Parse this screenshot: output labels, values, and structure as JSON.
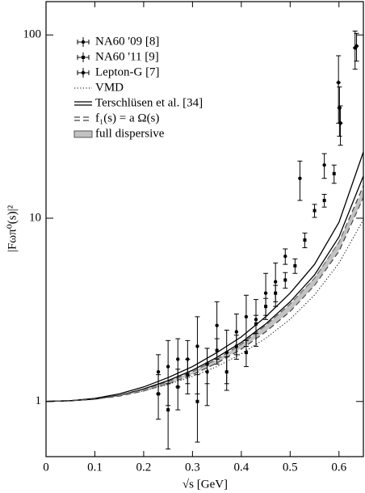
{
  "chart_data": {
    "type": "scatter",
    "xlabel": "√s [GeV]",
    "ylabel": "|Fωπ⁰(s)|²",
    "xlim": [
      0,
      0.65
    ],
    "xticks": [
      0,
      0.1,
      0.2,
      0.3,
      0.4,
      0.5,
      0.6
    ],
    "ylim": [
      0.5,
      152
    ],
    "yticks": [
      1,
      10,
      100
    ],
    "log_y": true,
    "legend": "upper left",
    "curve_x": [
      0,
      0.05,
      0.1,
      0.15,
      0.2,
      0.25,
      0.3,
      0.35,
      0.4,
      0.45,
      0.5,
      0.55,
      0.6,
      0.65
    ],
    "series": [
      {
        "name": "NA60 '09 [8]",
        "style": "errorbar-circle",
        "color": "#000000",
        "x": [
          0.23,
          0.25,
          0.27,
          0.29,
          0.31,
          0.33,
          0.35,
          0.37,
          0.39,
          0.41,
          0.43,
          0.45,
          0.47,
          0.49,
          0.52,
          0.57
        ],
        "values": [
          1.45,
          1.55,
          1.7,
          1.7,
          2.0,
          1.45,
          2.6,
          1.85,
          2.4,
          2.9,
          2.8,
          3.9,
          4.5,
          6.2,
          16.5,
          19.5
        ],
        "errors": [
          0.35,
          0.6,
          0.5,
          0.45,
          0.9,
          0.5,
          0.9,
          0.6,
          0.6,
          0.9,
          0.8,
          1.1,
          1.2,
          0.6,
          4,
          3
        ]
      },
      {
        "name": "NA60 '11 [9]",
        "style": "errorbar-square",
        "color": "#000000",
        "x": [
          0.23,
          0.25,
          0.27,
          0.29,
          0.31,
          0.33,
          0.35,
          0.37,
          0.39,
          0.41,
          0.43,
          0.45,
          0.47,
          0.49,
          0.51,
          0.53,
          0.55,
          0.57,
          0.59
        ],
        "values": [
          1.1,
          0.9,
          1.2,
          1.4,
          1.0,
          1.6,
          1.9,
          1.45,
          2.0,
          1.85,
          2.65,
          3.3,
          3.9,
          4.6,
          5.5,
          7.6,
          11,
          12.5,
          17.5
        ],
        "errors": [
          0.3,
          0.35,
          0.3,
          0.3,
          0.4,
          0.35,
          0.3,
          0.3,
          0.3,
          0.3,
          0.3,
          0.35,
          0.4,
          0.45,
          0.5,
          0.7,
          0.9,
          1.0,
          2.0
        ]
      },
      {
        "name": "Lepton-G [7]",
        "style": "errorbar-diamond",
        "color": "#000000",
        "x": [
          0.599,
          0.601,
          0.603,
          0.633,
          0.636
        ],
        "values": [
          55,
          40,
          33,
          85,
          87
        ],
        "errors": [
          22,
          12,
          8,
          20,
          15
        ]
      },
      {
        "name": "VMD",
        "style": "dotted",
        "color": "#000000",
        "lines": [
          [
            1,
            1.01,
            1.03,
            1.08,
            1.14,
            1.24,
            1.37,
            1.55,
            1.82,
            2.21,
            2.81,
            3.81,
            5.69,
            9.83
          ]
        ]
      },
      {
        "name": "Terschlüsen et al. [34]",
        "style": "solid",
        "color": "#000000",
        "lines": [
          [
            1,
            1.01,
            1.04,
            1.1,
            1.2,
            1.35,
            1.55,
            1.85,
            2.25,
            2.9,
            3.9,
            5.6,
            9.5,
            23
          ],
          [
            1,
            1.01,
            1.03,
            1.08,
            1.17,
            1.3,
            1.48,
            1.74,
            2.1,
            2.65,
            3.5,
            4.9,
            7.9,
            17
          ]
        ]
      },
      {
        "name": "f₁(s) = a Ω(s)",
        "style": "dashed",
        "color": "#444444",
        "lines": [
          [
            1,
            1.01,
            1.03,
            1.08,
            1.16,
            1.28,
            1.45,
            1.7,
            2.05,
            2.6,
            3.4,
            4.7,
            7.4,
            15
          ],
          [
            1,
            1.01,
            1.03,
            1.07,
            1.14,
            1.25,
            1.4,
            1.62,
            1.93,
            2.4,
            3.1,
            4.3,
            6.6,
            13
          ]
        ]
      },
      {
        "name": "full dispersive",
        "style": "band",
        "color": "#999999",
        "lines": [
          [
            1,
            1.01,
            1.03,
            1.08,
            1.16,
            1.28,
            1.45,
            1.7,
            2.05,
            2.6,
            3.4,
            4.75,
            7.5,
            14.5
          ],
          [
            1,
            1.01,
            1.03,
            1.07,
            1.14,
            1.25,
            1.41,
            1.63,
            1.95,
            2.42,
            3.12,
            4.3,
            6.7,
            13
          ]
        ]
      }
    ]
  }
}
